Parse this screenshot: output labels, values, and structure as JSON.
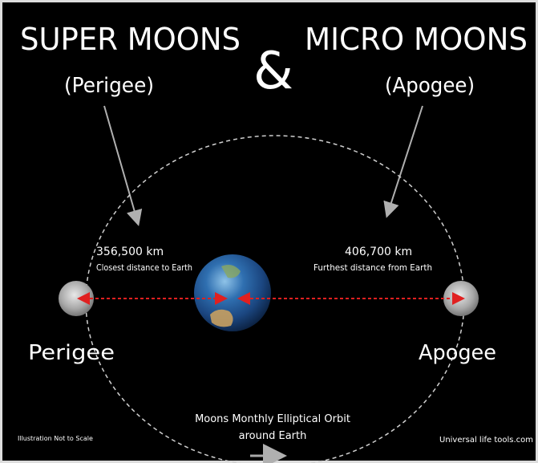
{
  "header": {
    "left_title": "SUPER MOONS",
    "ampersand": "&",
    "right_title": "MICRO MOONS",
    "left_sub": "(Perigee)",
    "right_sub": "(Apogee)"
  },
  "perigee": {
    "distance": "356,500 km",
    "caption": "Closest distance to Earth",
    "label": "Perigee"
  },
  "apogee": {
    "distance": "406,700 km",
    "caption": "Furthest distance from Earth",
    "label": "Apogee"
  },
  "orbit": {
    "line1": "Moons Monthly Elliptical Orbit",
    "line2": "around Earth"
  },
  "footer": {
    "note": "Illustration Not to Scale",
    "logo": "Universal life tools.com"
  }
}
